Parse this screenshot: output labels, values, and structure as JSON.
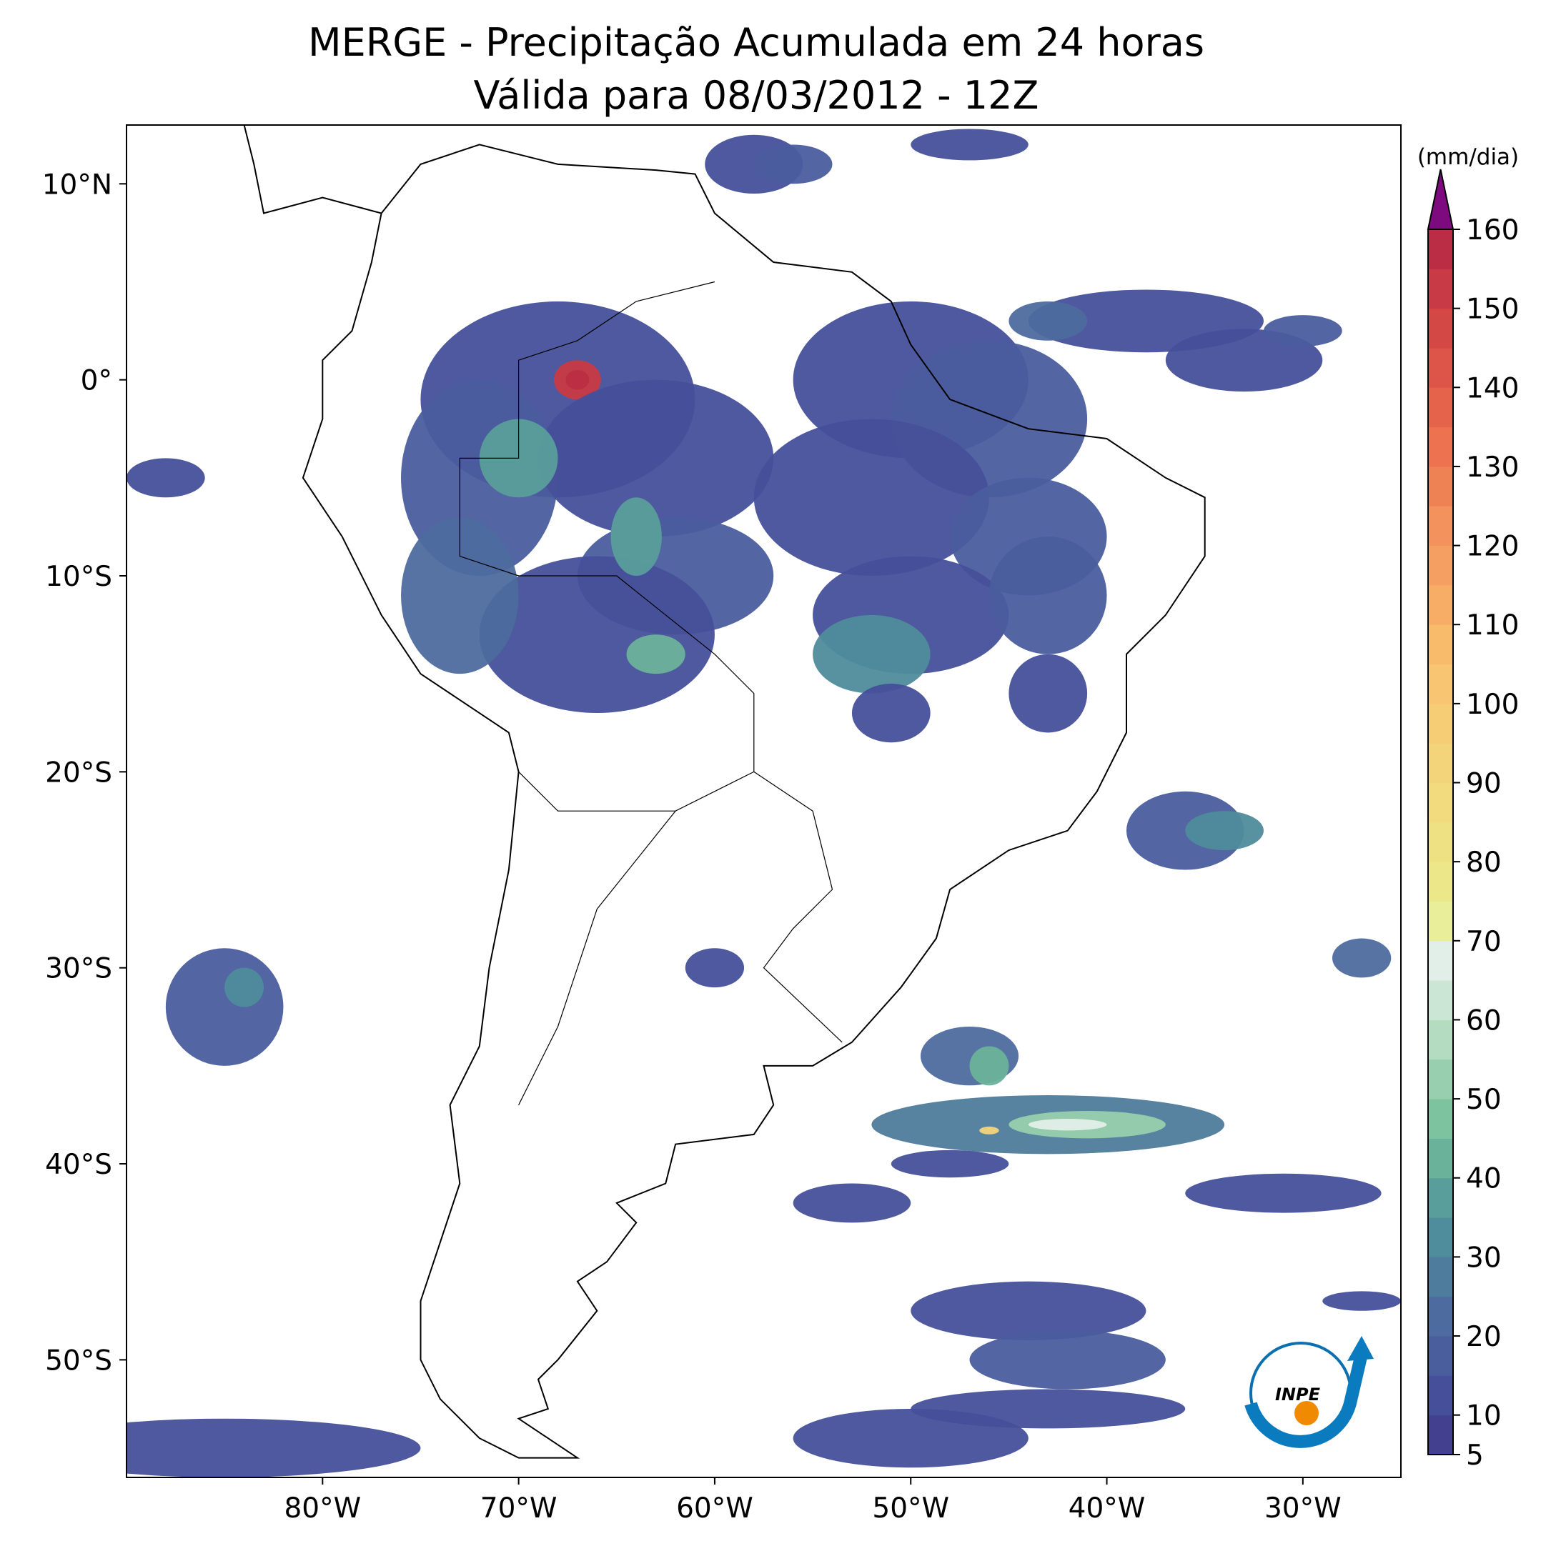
{
  "header": {
    "title": "MERGE - Precipitação Acumulada em 24 horas",
    "subtitle": "Válida para 08/03/2012 - 12Z"
  },
  "map": {
    "xlim": [
      -90,
      -25
    ],
    "ylim": [
      -56,
      13
    ],
    "xticks": [
      {
        "value": -80,
        "label": "80°W"
      },
      {
        "value": -70,
        "label": "70°W"
      },
      {
        "value": -60,
        "label": "60°W"
      },
      {
        "value": -50,
        "label": "50°W"
      },
      {
        "value": -40,
        "label": "40°W"
      },
      {
        "value": -30,
        "label": "30°W"
      }
    ],
    "yticks": [
      {
        "value": 10,
        "label": "10°N"
      },
      {
        "value": 0,
        "label": "0°"
      },
      {
        "value": -10,
        "label": "10°S"
      },
      {
        "value": -20,
        "label": "20°S"
      },
      {
        "value": -30,
        "label": "30°S"
      },
      {
        "value": -40,
        "label": "40°S"
      },
      {
        "value": -50,
        "label": "50°S"
      }
    ]
  },
  "colorbar": {
    "label": "(mm/dia)",
    "lim": [
      5,
      160
    ],
    "ticks": [
      5,
      10,
      20,
      30,
      40,
      50,
      60,
      70,
      80,
      90,
      100,
      110,
      120,
      130,
      140,
      150,
      160
    ],
    "colors": [
      "#43418f",
      "#46509a",
      "#4a5d9d",
      "#4d6b9e",
      "#4e7c9c",
      "#4f8c9c",
      "#5a9e9b",
      "#6ab29a",
      "#7ec3a0",
      "#98cfae",
      "#b3dcc0",
      "#cbe6d4",
      "#e2eee8",
      "#e8ee9a",
      "#ece88a",
      "#eee184",
      "#f2da7e",
      "#f4d47a",
      "#f6cc75",
      "#f8c672",
      "#f8bb6c",
      "#f7ad66",
      "#f5a062",
      "#f3925c",
      "#ef8255",
      "#ec7250",
      "#e5634b",
      "#dd5548",
      "#d34745",
      "#c83a45",
      "#bb2d44"
    ],
    "extend_color": "#7d0a7f"
  },
  "logo": "INPE"
}
